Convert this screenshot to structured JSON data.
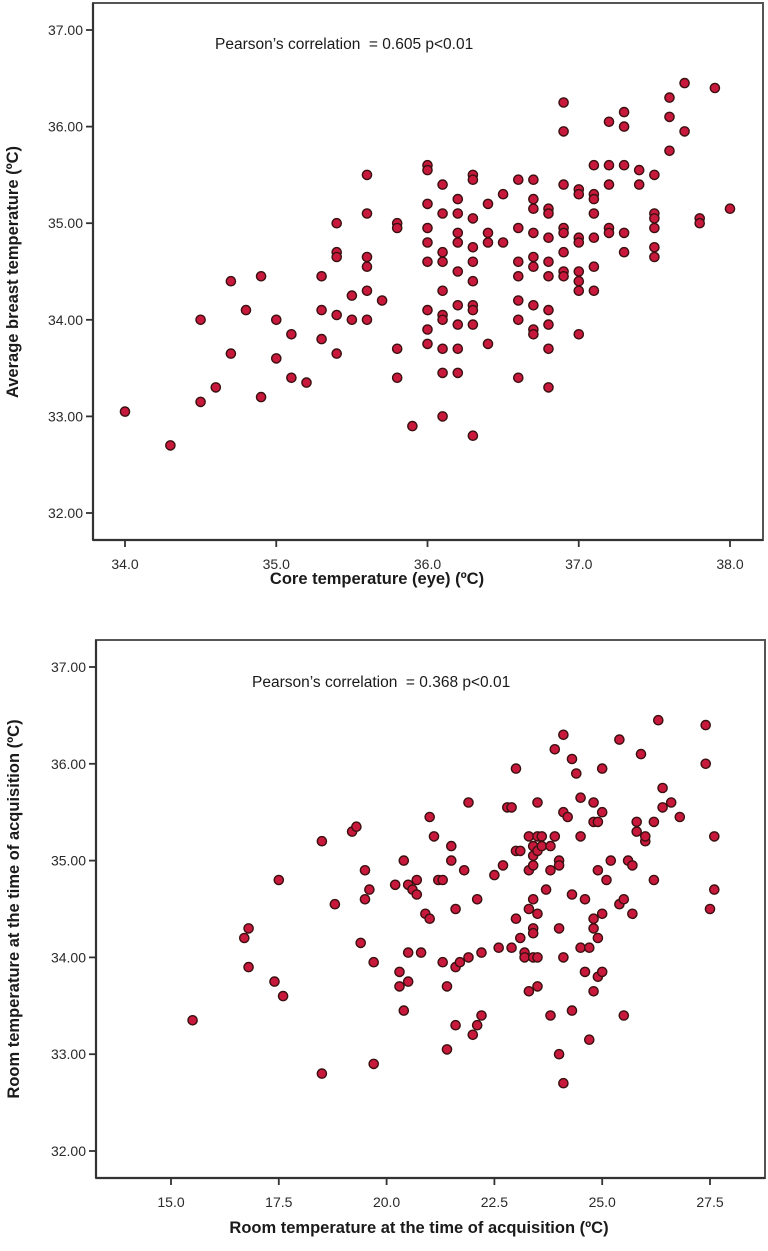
{
  "chart_data": [
    {
      "type": "scatter",
      "title": "",
      "annotation": "Pearson’s correlation  = 0.605 p<0.01",
      "xlabel": "Core temperature (eye) (ºC)",
      "ylabel": "Average breast temperature (ºC)",
      "xlim": [
        33.8,
        38.2
      ],
      "ylim": [
        31.72,
        37.3
      ],
      "xticks": [
        34.0,
        35.0,
        36.0,
        37.0,
        38.0
      ],
      "xtick_labels": [
        "34.0",
        "35.0",
        "36.0",
        "37.0",
        "38.0"
      ],
      "yticks": [
        37.0,
        36.0,
        35.0,
        34.0,
        33.0,
        32.0
      ],
      "ytick_labels": [
        "37.00",
        "36.00",
        "35.00",
        "34.00",
        "33.00",
        "32.00"
      ],
      "grid": false,
      "marker_color": "#c8193c",
      "points": [
        [
          34.0,
          33.05
        ],
        [
          34.3,
          32.7
        ],
        [
          34.5,
          34.0
        ],
        [
          34.5,
          33.15
        ],
        [
          34.6,
          33.3
        ],
        [
          34.7,
          34.4
        ],
        [
          34.7,
          33.65
        ],
        [
          34.8,
          34.1
        ],
        [
          34.9,
          34.45
        ],
        [
          34.9,
          33.2
        ],
        [
          35.0,
          34.0
        ],
        [
          35.0,
          33.6
        ],
        [
          35.1,
          33.85
        ],
        [
          35.1,
          33.4
        ],
        [
          35.2,
          33.35
        ],
        [
          35.3,
          34.45
        ],
        [
          35.3,
          34.1
        ],
        [
          35.3,
          33.8
        ],
        [
          35.4,
          35.0
        ],
        [
          35.4,
          34.7
        ],
        [
          35.4,
          34.65
        ],
        [
          35.4,
          34.05
        ],
        [
          35.4,
          33.65
        ],
        [
          35.5,
          34.25
        ],
        [
          35.5,
          34.0
        ],
        [
          35.6,
          35.5
        ],
        [
          35.6,
          35.1
        ],
        [
          35.6,
          34.65
        ],
        [
          35.6,
          34.55
        ],
        [
          35.6,
          34.3
        ],
        [
          35.6,
          34.0
        ],
        [
          35.7,
          34.2
        ],
        [
          35.8,
          35.0
        ],
        [
          35.8,
          34.95
        ],
        [
          35.8,
          33.7
        ],
        [
          35.8,
          33.4
        ],
        [
          35.9,
          32.9
        ],
        [
          36.0,
          35.6
        ],
        [
          36.0,
          35.55
        ],
        [
          36.0,
          35.2
        ],
        [
          36.0,
          34.95
        ],
        [
          36.0,
          34.8
        ],
        [
          36.0,
          34.6
        ],
        [
          36.0,
          34.1
        ],
        [
          36.0,
          33.9
        ],
        [
          36.0,
          33.75
        ],
        [
          36.1,
          35.4
        ],
        [
          36.1,
          35.1
        ],
        [
          36.1,
          34.7
        ],
        [
          36.1,
          34.6
        ],
        [
          36.1,
          34.3
        ],
        [
          36.1,
          34.05
        ],
        [
          36.1,
          34.0
        ],
        [
          36.1,
          33.7
        ],
        [
          36.1,
          33.45
        ],
        [
          36.1,
          33.0
        ],
        [
          36.2,
          35.25
        ],
        [
          36.2,
          35.1
        ],
        [
          36.2,
          34.9
        ],
        [
          36.2,
          34.8
        ],
        [
          36.2,
          34.5
        ],
        [
          36.2,
          34.15
        ],
        [
          36.2,
          33.95
        ],
        [
          36.2,
          33.7
        ],
        [
          36.2,
          33.45
        ],
        [
          36.3,
          35.5
        ],
        [
          36.3,
          35.45
        ],
        [
          36.3,
          35.05
        ],
        [
          36.3,
          34.75
        ],
        [
          36.3,
          34.6
        ],
        [
          36.3,
          34.4
        ],
        [
          36.3,
          34.15
        ],
        [
          36.3,
          34.1
        ],
        [
          36.3,
          33.95
        ],
        [
          36.3,
          32.8
        ],
        [
          36.4,
          35.2
        ],
        [
          36.4,
          34.9
        ],
        [
          36.4,
          34.8
        ],
        [
          36.4,
          33.75
        ],
        [
          36.5,
          35.3
        ],
        [
          36.5,
          34.8
        ],
        [
          36.6,
          35.45
        ],
        [
          36.6,
          34.95
        ],
        [
          36.6,
          34.6
        ],
        [
          36.6,
          34.45
        ],
        [
          36.6,
          34.2
        ],
        [
          36.6,
          34.0
        ],
        [
          36.6,
          33.4
        ],
        [
          36.7,
          35.45
        ],
        [
          36.7,
          35.25
        ],
        [
          36.7,
          35.15
        ],
        [
          36.7,
          34.9
        ],
        [
          36.7,
          34.65
        ],
        [
          36.7,
          34.55
        ],
        [
          36.7,
          34.15
        ],
        [
          36.7,
          33.9
        ],
        [
          36.7,
          33.85
        ],
        [
          36.8,
          35.15
        ],
        [
          36.8,
          35.1
        ],
        [
          36.8,
          34.85
        ],
        [
          36.8,
          34.6
        ],
        [
          36.8,
          34.45
        ],
        [
          36.8,
          34.1
        ],
        [
          36.8,
          33.95
        ],
        [
          36.8,
          33.7
        ],
        [
          36.8,
          33.3
        ],
        [
          36.9,
          36.25
        ],
        [
          36.9,
          35.95
        ],
        [
          36.9,
          35.4
        ],
        [
          36.9,
          34.95
        ],
        [
          36.9,
          34.9
        ],
        [
          36.9,
          34.7
        ],
        [
          36.9,
          34.5
        ],
        [
          36.9,
          34.45
        ],
        [
          37.0,
          35.35
        ],
        [
          37.0,
          35.3
        ],
        [
          37.0,
          34.85
        ],
        [
          37.0,
          34.8
        ],
        [
          37.0,
          34.5
        ],
        [
          37.0,
          34.4
        ],
        [
          37.0,
          34.3
        ],
        [
          37.0,
          33.85
        ],
        [
          37.1,
          35.6
        ],
        [
          37.1,
          35.3
        ],
        [
          37.1,
          35.25
        ],
        [
          37.1,
          35.1
        ],
        [
          37.1,
          34.85
        ],
        [
          37.1,
          34.55
        ],
        [
          37.1,
          34.3
        ],
        [
          37.2,
          36.05
        ],
        [
          37.2,
          35.6
        ],
        [
          37.2,
          35.4
        ],
        [
          37.2,
          34.95
        ],
        [
          37.2,
          34.9
        ],
        [
          37.3,
          36.15
        ],
        [
          37.3,
          36.0
        ],
        [
          37.3,
          35.6
        ],
        [
          37.3,
          34.9
        ],
        [
          37.3,
          34.7
        ],
        [
          37.4,
          35.55
        ],
        [
          37.4,
          35.4
        ],
        [
          37.5,
          35.5
        ],
        [
          37.5,
          35.1
        ],
        [
          37.5,
          35.05
        ],
        [
          37.5,
          34.95
        ],
        [
          37.5,
          34.75
        ],
        [
          37.5,
          34.65
        ],
        [
          37.6,
          36.3
        ],
        [
          37.6,
          36.1
        ],
        [
          37.6,
          35.75
        ],
        [
          37.7,
          36.45
        ],
        [
          37.7,
          35.95
        ],
        [
          37.8,
          35.05
        ],
        [
          37.8,
          35.0
        ],
        [
          37.9,
          36.4
        ],
        [
          38.0,
          35.15
        ]
      ]
    },
    {
      "type": "scatter",
      "title": "",
      "annotation": "Pearson’s correlation  = 0.368 p<0.01",
      "xlabel": "Room temperature at the time of acquisition (ºC)",
      "ylabel": "Room temperature at the time of acquisition (ºC)",
      "xlim": [
        13.25,
        28.75
      ],
      "ylim": [
        31.72,
        37.3
      ],
      "xticks": [
        15.0,
        17.5,
        20.0,
        22.5,
        25.0,
        27.5
      ],
      "xtick_labels": [
        "15.0",
        "17.5",
        "20.0",
        "22.5",
        "25.0",
        "27.5"
      ],
      "yticks": [
        37.0,
        36.0,
        35.0,
        34.0,
        33.0,
        32.0
      ],
      "ytick_labels": [
        "37.00",
        "36.00",
        "35.00",
        "34.00",
        "33.00",
        "32.00"
      ],
      "grid": false,
      "marker_color": "#c8193c",
      "points": [
        [
          15.5,
          33.35
        ],
        [
          16.7,
          34.2
        ],
        [
          16.8,
          34.3
        ],
        [
          16.8,
          33.9
        ],
        [
          17.4,
          33.75
        ],
        [
          17.5,
          34.8
        ],
        [
          17.6,
          33.6
        ],
        [
          18.5,
          35.2
        ],
        [
          18.5,
          32.8
        ],
        [
          18.8,
          34.55
        ],
        [
          19.2,
          35.3
        ],
        [
          19.3,
          35.35
        ],
        [
          19.4,
          34.15
        ],
        [
          19.5,
          34.9
        ],
        [
          19.5,
          34.6
        ],
        [
          19.6,
          34.7
        ],
        [
          19.7,
          33.95
        ],
        [
          19.7,
          32.9
        ],
        [
          20.2,
          34.75
        ],
        [
          20.3,
          33.7
        ],
        [
          20.3,
          33.85
        ],
        [
          20.4,
          35.0
        ],
        [
          20.4,
          33.45
        ],
        [
          20.5,
          34.75
        ],
        [
          20.5,
          34.05
        ],
        [
          20.5,
          33.75
        ],
        [
          20.6,
          34.7
        ],
        [
          20.7,
          34.8
        ],
        [
          20.7,
          34.65
        ],
        [
          20.8,
          34.05
        ],
        [
          20.9,
          34.45
        ],
        [
          21.0,
          35.45
        ],
        [
          21.0,
          34.4
        ],
        [
          21.1,
          35.25
        ],
        [
          21.2,
          34.8
        ],
        [
          21.3,
          34.8
        ],
        [
          21.3,
          33.95
        ],
        [
          21.4,
          33.7
        ],
        [
          21.4,
          33.05
        ],
        [
          21.5,
          35.15
        ],
        [
          21.5,
          35.0
        ],
        [
          21.6,
          34.5
        ],
        [
          21.6,
          33.9
        ],
        [
          21.6,
          33.3
        ],
        [
          21.7,
          33.95
        ],
        [
          21.8,
          34.9
        ],
        [
          21.9,
          35.6
        ],
        [
          21.9,
          34.0
        ],
        [
          22.0,
          33.2
        ],
        [
          22.1,
          34.6
        ],
        [
          22.1,
          33.3
        ],
        [
          22.2,
          34.05
        ],
        [
          22.2,
          33.4
        ],
        [
          22.5,
          34.85
        ],
        [
          22.6,
          34.1
        ],
        [
          22.7,
          34.95
        ],
        [
          22.8,
          35.55
        ],
        [
          22.9,
          34.1
        ],
        [
          22.9,
          35.55
        ],
        [
          23.0,
          35.95
        ],
        [
          23.0,
          35.1
        ],
        [
          23.0,
          34.4
        ],
        [
          23.1,
          35.1
        ],
        [
          23.1,
          34.2
        ],
        [
          23.2,
          34.05
        ],
        [
          23.2,
          34.0
        ],
        [
          23.3,
          35.25
        ],
        [
          23.3,
          34.9
        ],
        [
          23.3,
          34.5
        ],
        [
          23.3,
          33.65
        ],
        [
          23.4,
          35.15
        ],
        [
          23.4,
          35.05
        ],
        [
          23.4,
          34.95
        ],
        [
          23.4,
          34.6
        ],
        [
          23.4,
          34.3
        ],
        [
          23.4,
          34.25
        ],
        [
          23.4,
          34.0
        ],
        [
          23.5,
          35.6
        ],
        [
          23.5,
          35.25
        ],
        [
          23.5,
          35.1
        ],
        [
          23.5,
          34.45
        ],
        [
          23.5,
          34.0
        ],
        [
          23.5,
          33.7
        ],
        [
          23.6,
          35.25
        ],
        [
          23.6,
          35.15
        ],
        [
          23.7,
          34.7
        ],
        [
          23.8,
          35.15
        ],
        [
          23.8,
          34.9
        ],
        [
          23.8,
          33.4
        ],
        [
          23.9,
          36.15
        ],
        [
          23.9,
          35.25
        ],
        [
          24.0,
          35.0
        ],
        [
          24.0,
          34.95
        ],
        [
          24.0,
          34.3
        ],
        [
          24.0,
          33.0
        ],
        [
          24.1,
          36.3
        ],
        [
          24.1,
          35.5
        ],
        [
          24.1,
          34.0
        ],
        [
          24.1,
          32.7
        ],
        [
          24.2,
          35.45
        ],
        [
          24.3,
          36.05
        ],
        [
          24.3,
          34.65
        ],
        [
          24.3,
          33.45
        ],
        [
          24.4,
          35.9
        ],
        [
          24.5,
          35.65
        ],
        [
          24.5,
          35.25
        ],
        [
          24.5,
          34.1
        ],
        [
          24.6,
          34.6
        ],
        [
          24.6,
          33.85
        ],
        [
          24.7,
          34.1
        ],
        [
          24.7,
          33.15
        ],
        [
          24.8,
          35.6
        ],
        [
          24.8,
          35.4
        ],
        [
          24.8,
          34.4
        ],
        [
          24.8,
          34.3
        ],
        [
          24.8,
          33.65
        ],
        [
          24.9,
          35.4
        ],
        [
          24.9,
          34.9
        ],
        [
          24.9,
          34.2
        ],
        [
          24.9,
          33.8
        ],
        [
          25.0,
          35.95
        ],
        [
          25.0,
          35.5
        ],
        [
          25.0,
          34.45
        ],
        [
          25.0,
          33.85
        ],
        [
          25.1,
          34.8
        ],
        [
          25.2,
          35.0
        ],
        [
          25.4,
          36.25
        ],
        [
          25.4,
          34.55
        ],
        [
          25.5,
          34.6
        ],
        [
          25.5,
          33.4
        ],
        [
          25.6,
          35.0
        ],
        [
          25.7,
          34.95
        ],
        [
          25.7,
          34.45
        ],
        [
          25.8,
          35.4
        ],
        [
          25.8,
          35.3
        ],
        [
          25.9,
          36.1
        ],
        [
          26.0,
          35.2
        ],
        [
          26.0,
          35.25
        ],
        [
          26.2,
          35.4
        ],
        [
          26.2,
          34.8
        ],
        [
          26.3,
          36.45
        ],
        [
          26.4,
          35.75
        ],
        [
          26.4,
          35.55
        ],
        [
          26.6,
          35.6
        ],
        [
          26.8,
          35.45
        ],
        [
          27.4,
          36.4
        ],
        [
          27.4,
          36.0
        ],
        [
          27.5,
          34.5
        ],
        [
          27.6,
          35.25
        ],
        [
          27.6,
          34.7
        ]
      ]
    }
  ]
}
